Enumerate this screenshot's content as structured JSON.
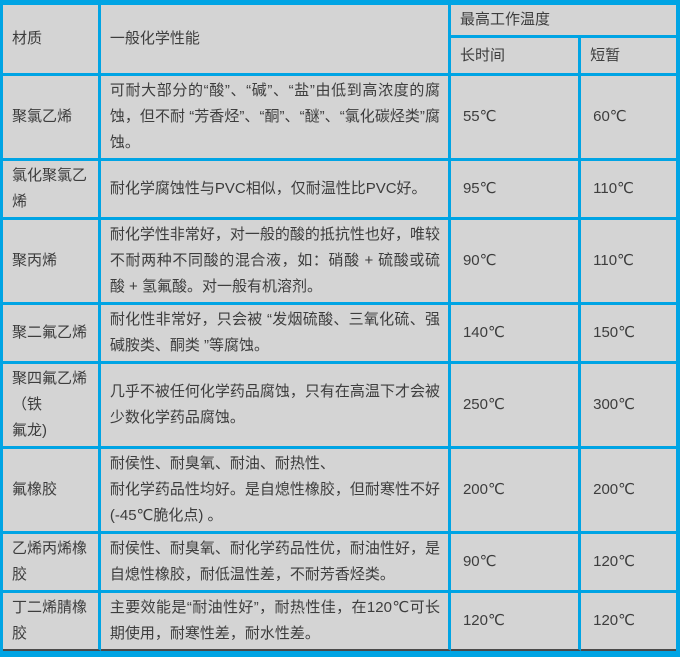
{
  "colors": {
    "border": "#00a4e4",
    "cell_bg": "#d4d4d4",
    "text": "#3d3d3d",
    "dark_rule": "#4a4a4a"
  },
  "table": {
    "header": {
      "material": "材质",
      "chem": "一般化学性能",
      "max_temp": "最高工作温度",
      "long_time": "长时间",
      "short_time": "短暂"
    },
    "rows": [
      {
        "material": "聚氯乙烯",
        "chem": "可耐大部分的“酸”、“碱”、“盐”由低到高浓度的腐蚀，但不耐 “芳香烃”、“酮”、“醚”、“氯化碳烃类”腐蚀。",
        "long": "55℃",
        "short": "60℃"
      },
      {
        "material": "氯化聚氯乙烯",
        "chem": "耐化学腐蚀性与PVC相似，仅耐温性比PVC好。",
        "long": "95℃",
        "short": "110℃"
      },
      {
        "material": "聚丙烯",
        "chem": "耐化学性非常好，对一般的酸的抵抗性也好，唯较不耐两种不同酸的混合液，如：硝酸 + 硫酸或硫酸 + 氢氟酸。对一般有机溶剂。",
        "long": "90℃",
        "short": "110℃"
      },
      {
        "material": "聚二氟乙烯",
        "chem": "耐化性非常好，只会被 “发烟硫酸、三氧化硫、强碱胺类、酮类 ”等腐蚀。",
        "long": "140℃",
        "short": "150℃"
      },
      {
        "material": "聚四氟乙烯\n（铁\n氟龙)",
        "chem": "几乎不被任何化学药品腐蚀，只有在高温下才会被少数化学药品腐蚀。",
        "long": "250℃",
        "short": "300℃"
      },
      {
        "material": "氟橡胶",
        "chem": "耐侯性、耐臭氧、耐油、耐热性、\n耐化学药品性均好。是自熄性橡胶，但耐寒性不好 (-45℃脆化点) 。",
        "long": "200℃",
        "short": "200℃"
      },
      {
        "material": "乙烯丙烯橡胶",
        "chem": "耐侯性、耐臭氧、耐化学药品性优，耐油性好，是自熄性橡胶，耐低温性差，不耐芳香烃类。",
        "long": "90℃",
        "short": "120℃"
      },
      {
        "material": "丁二烯腈橡胶",
        "chem": "主要效能是“耐油性好”，耐热性佳，在120℃可长期使用，耐寒性差，耐水性差。",
        "long": "120℃",
        "short": "120℃"
      }
    ]
  }
}
